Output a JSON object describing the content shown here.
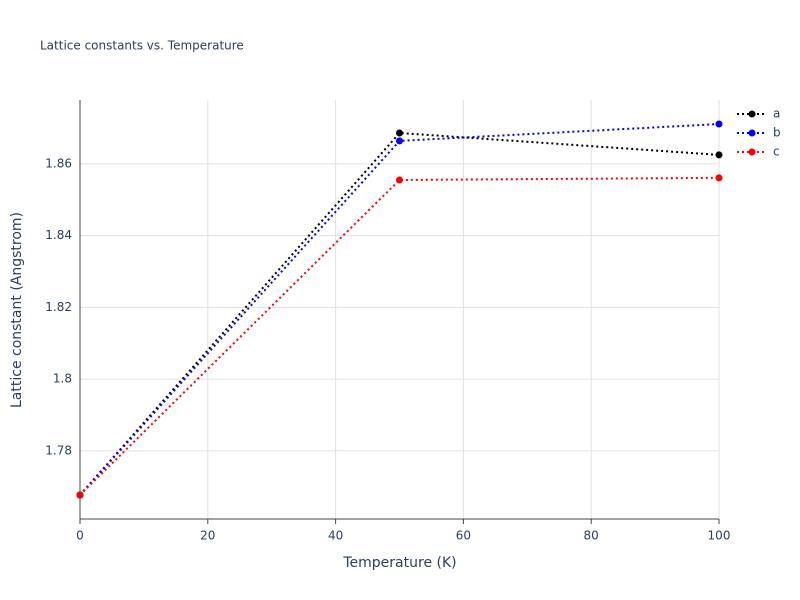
{
  "chart_data": {
    "type": "line",
    "title": "Lattice constants vs. Temperature",
    "xlabel": "Temperature (K)",
    "ylabel": "Lattice constant (Angstrom)",
    "x": [
      0,
      50,
      100
    ],
    "series": [
      {
        "name": "a",
        "color": "#000000",
        "values": [
          1.7677,
          1.8686,
          1.8625
        ]
      },
      {
        "name": "b",
        "color": "#0000ff",
        "values": [
          1.7677,
          1.8664,
          1.8711
        ]
      },
      {
        "name": "c",
        "color": "#ff0000",
        "values": [
          1.7677,
          1.8555,
          1.8561
        ]
      }
    ],
    "xlim": [
      0,
      100
    ],
    "xticks": [
      0,
      20,
      40,
      60,
      80,
      100
    ],
    "ylim": [
      1.761,
      1.8778
    ],
    "yticks": [
      1.78,
      1.8,
      1.82,
      1.84,
      1.86
    ],
    "grid": true,
    "legend": "top-right"
  }
}
